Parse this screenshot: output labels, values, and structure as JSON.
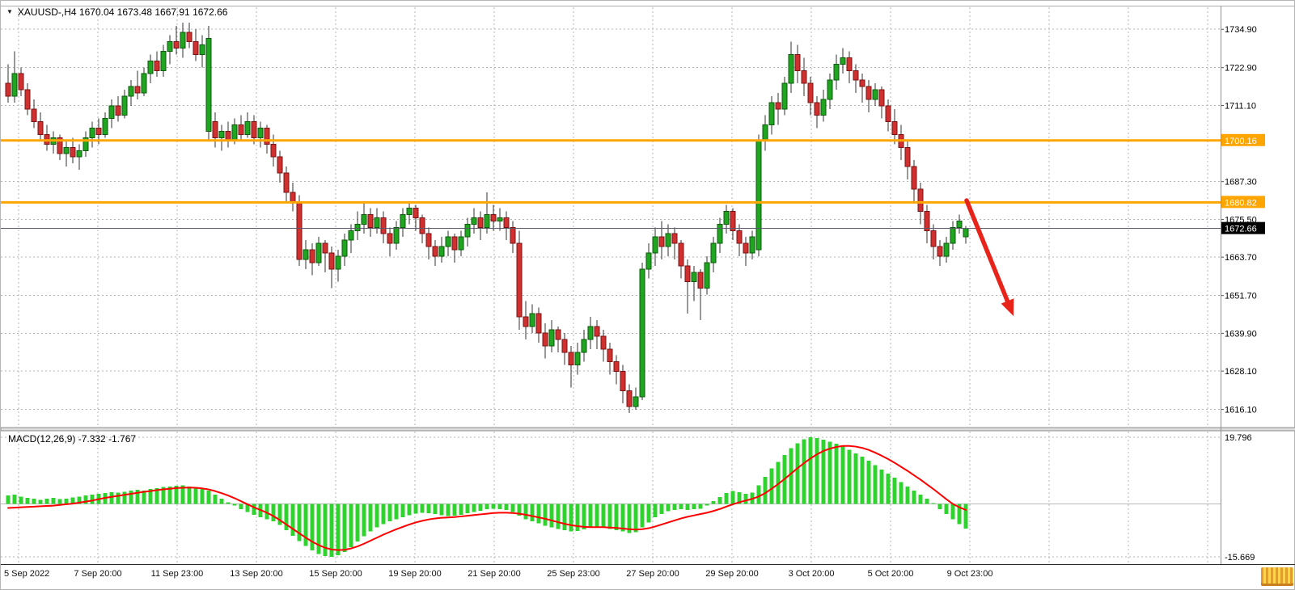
{
  "symbol_info": {
    "dropdown_icon": "▼",
    "symbol": "XAUUSD-",
    "timeframe": "H4",
    "open": "1670.04",
    "high": "1673.48",
    "low": "1667.91",
    "close": "1672.66",
    "label": "XAUUSD-,H4 1670.04 1673.48 1667.91 1672.66"
  },
  "colors": {
    "background": "#ffffff",
    "grid": "#b5b5b5",
    "candle_up": "#1fa51f",
    "candle_up_border": "#0c5c0c",
    "candle_down": "#d03030",
    "candle_down_border": "#7a1414",
    "wick": "#303030",
    "level_orange": "#ffa500",
    "current_price_line": "#5a5a6a",
    "current_price_box": "#000000",
    "macd_histogram": "#2ed32e",
    "macd_signal": "#ff0000",
    "arrow": "#e8231a",
    "axis_text": "#000000",
    "separator": "#8f8f8f"
  },
  "chart_data": [
    {
      "type": "candlestick",
      "symbol": "XAUUSD-",
      "timeframe": "H4",
      "y_axis_ticks": [
        "1734.90",
        "1722.90",
        "1711.10",
        "1687.30",
        "1675.50",
        "1663.70",
        "1651.70",
        "1639.90",
        "1628.10",
        "1616.10"
      ],
      "x_axis_labels": [
        "5 Sep 2022",
        "7 Sep 20:00",
        "11 Sep 23:00",
        "13 Sep 20:00",
        "15 Sep 20:00",
        "19 Sep 20:00",
        "21 Sep 20:00",
        "25 Sep 23:00",
        "27 Sep 20:00",
        "29 Sep 20:00",
        "3 Oct 20:00",
        "5 Oct 20:00",
        "9 Oct 23:00"
      ],
      "levels": [
        {
          "value": 1700.16,
          "label": "1700.16"
        },
        {
          "value": 1680.82,
          "label": "1680.82"
        }
      ],
      "current_price": {
        "value": 1672.66,
        "label": "1672.66"
      },
      "candles": [
        [
          1718,
          1724,
          1712,
          1714
        ],
        [
          1714,
          1728,
          1712,
          1721
        ],
        [
          1721,
          1723,
          1714,
          1716
        ],
        [
          1716,
          1718,
          1708,
          1710
        ],
        [
          1710,
          1713,
          1704,
          1706
        ],
        [
          1706,
          1709,
          1700,
          1702
        ],
        [
          1702,
          1705,
          1697,
          1699
        ],
        [
          1699,
          1703,
          1696,
          1701
        ],
        [
          1701,
          1702,
          1694,
          1696
        ],
        [
          1696,
          1700,
          1692,
          1698
        ],
        [
          1698,
          1701,
          1693,
          1695
        ],
        [
          1695,
          1699,
          1691,
          1697
        ],
        [
          1697,
          1703,
          1695,
          1701
        ],
        [
          1701,
          1706,
          1698,
          1704
        ],
        [
          1704,
          1707,
          1699,
          1702
        ],
        [
          1702,
          1709,
          1701,
          1707
        ],
        [
          1707,
          1713,
          1704,
          1711
        ],
        [
          1711,
          1714,
          1706,
          1708
        ],
        [
          1708,
          1716,
          1707,
          1714
        ],
        [
          1714,
          1719,
          1711,
          1717
        ],
        [
          1717,
          1722,
          1713,
          1715
        ],
        [
          1715,
          1723,
          1714,
          1721
        ],
        [
          1721,
          1727,
          1718,
          1725
        ],
        [
          1725,
          1728,
          1720,
          1722
        ],
        [
          1722,
          1730,
          1720,
          1728
        ],
        [
          1728,
          1733,
          1724,
          1731
        ],
        [
          1731,
          1736,
          1727,
          1729
        ],
        [
          1729,
          1737,
          1726,
          1734
        ],
        [
          1734,
          1737,
          1729,
          1731
        ],
        [
          1731,
          1735,
          1725,
          1727
        ],
        [
          1727,
          1733,
          1723,
          1730
        ],
        [
          1703,
          1736,
          1700,
          1732
        ],
        [
          1706,
          1709,
          1698,
          1701
        ],
        [
          1701,
          1705,
          1697,
          1703
        ],
        [
          1703,
          1706,
          1698,
          1700
        ],
        [
          1700,
          1707,
          1699,
          1705
        ],
        [
          1705,
          1708,
          1700,
          1702
        ],
        [
          1702,
          1709,
          1701,
          1706
        ],
        [
          1706,
          1708,
          1699,
          1701
        ],
        [
          1701,
          1706,
          1698,
          1704
        ],
        [
          1704,
          1705,
          1696,
          1699
        ],
        [
          1699,
          1702,
          1692,
          1695
        ],
        [
          1695,
          1697,
          1687,
          1690
        ],
        [
          1690,
          1692,
          1681,
          1684
        ],
        [
          1684,
          1687,
          1678,
          1681
        ],
        [
          1681,
          1683,
          1661,
          1663
        ],
        [
          1663,
          1669,
          1660,
          1666
        ],
        [
          1666,
          1668,
          1658,
          1662
        ],
        [
          1662,
          1670,
          1661,
          1668
        ],
        [
          1668,
          1669,
          1659,
          1665
        ],
        [
          1665,
          1667,
          1654,
          1660
        ],
        [
          1660,
          1666,
          1656,
          1664
        ],
        [
          1664,
          1671,
          1661,
          1669
        ],
        [
          1669,
          1674,
          1665,
          1672
        ],
        [
          1672,
          1678,
          1669,
          1674
        ],
        [
          1674,
          1681,
          1671,
          1677
        ],
        [
          1677,
          1679,
          1670,
          1673
        ],
        [
          1673,
          1679,
          1671,
          1676
        ],
        [
          1676,
          1678,
          1668,
          1671
        ],
        [
          1671,
          1673,
          1664,
          1668
        ],
        [
          1668,
          1675,
          1666,
          1673
        ],
        [
          1673,
          1679,
          1670,
          1677
        ],
        [
          1677,
          1681,
          1674,
          1679
        ],
        [
          1679,
          1680,
          1672,
          1676
        ],
        [
          1676,
          1677,
          1668,
          1671
        ],
        [
          1671,
          1673,
          1663,
          1667
        ],
        [
          1667,
          1669,
          1661,
          1664
        ],
        [
          1664,
          1670,
          1662,
          1667
        ],
        [
          1667,
          1672,
          1664,
          1670
        ],
        [
          1670,
          1671,
          1662,
          1666
        ],
        [
          1666,
          1672,
          1664,
          1670
        ],
        [
          1670,
          1676,
          1667,
          1674
        ],
        [
          1674,
          1679,
          1671,
          1676
        ],
        [
          1676,
          1678,
          1669,
          1673
        ],
        [
          1673,
          1684,
          1671,
          1677
        ],
        [
          1677,
          1680,
          1672,
          1675
        ],
        [
          1675,
          1679,
          1672,
          1676
        ],
        [
          1676,
          1678,
          1669,
          1673
        ],
        [
          1673,
          1675,
          1665,
          1668
        ],
        [
          1668,
          1672,
          1641,
          1645
        ],
        [
          1645,
          1650,
          1638,
          1642
        ],
        [
          1642,
          1649,
          1640,
          1646
        ],
        [
          1646,
          1648,
          1637,
          1640
        ],
        [
          1640,
          1643,
          1632,
          1636
        ],
        [
          1636,
          1644,
          1634,
          1641
        ],
        [
          1641,
          1642,
          1634,
          1638
        ],
        [
          1638,
          1640,
          1630,
          1634
        ],
        [
          1634,
          1636,
          1623,
          1630
        ],
        [
          1630,
          1637,
          1627,
          1634
        ],
        [
          1634,
          1641,
          1631,
          1638
        ],
        [
          1638,
          1645,
          1635,
          1642
        ],
        [
          1642,
          1644,
          1635,
          1639
        ],
        [
          1639,
          1641,
          1631,
          1635
        ],
        [
          1635,
          1637,
          1627,
          1631
        ],
        [
          1631,
          1633,
          1624,
          1628
        ],
        [
          1628,
          1630,
          1618,
          1622
        ],
        [
          1622,
          1624,
          1615,
          1617
        ],
        [
          1617,
          1623,
          1616,
          1620
        ],
        [
          1620,
          1662,
          1619,
          1660
        ],
        [
          1660,
          1668,
          1657,
          1665
        ],
        [
          1665,
          1673,
          1661,
          1670
        ],
        [
          1670,
          1675,
          1663,
          1667
        ],
        [
          1667,
          1674,
          1664,
          1671
        ],
        [
          1671,
          1673,
          1663,
          1668
        ],
        [
          1668,
          1669,
          1657,
          1661
        ],
        [
          1661,
          1663,
          1646,
          1656
        ],
        [
          1656,
          1661,
          1650,
          1659
        ],
        [
          1659,
          1660,
          1644,
          1654
        ],
        [
          1654,
          1664,
          1652,
          1662
        ],
        [
          1662,
          1670,
          1659,
          1668
        ],
        [
          1668,
          1676,
          1665,
          1674
        ],
        [
          1674,
          1680,
          1671,
          1678
        ],
        [
          1678,
          1679,
          1669,
          1672
        ],
        [
          1672,
          1674,
          1664,
          1668
        ],
        [
          1668,
          1670,
          1661,
          1665
        ],
        [
          1665,
          1672,
          1663,
          1670
        ],
        [
          1666,
          1702,
          1664,
          1700
        ],
        [
          1700,
          1708,
          1697,
          1705
        ],
        [
          1705,
          1714,
          1702,
          1712
        ],
        [
          1712,
          1715,
          1705,
          1710
        ],
        [
          1710,
          1720,
          1708,
          1718
        ],
        [
          1718,
          1731,
          1715,
          1727
        ],
        [
          1727,
          1730,
          1718,
          1722
        ],
        [
          1722,
          1726,
          1714,
          1718
        ],
        [
          1718,
          1720,
          1708,
          1712
        ],
        [
          1712,
          1714,
          1704,
          1708
        ],
        [
          1708,
          1716,
          1706,
          1713
        ],
        [
          1713,
          1721,
          1710,
          1719
        ],
        [
          1719,
          1727,
          1716,
          1724
        ],
        [
          1724,
          1729,
          1721,
          1726
        ],
        [
          1726,
          1728,
          1718,
          1722
        ],
        [
          1722,
          1724,
          1715,
          1719
        ],
        [
          1719,
          1721,
          1712,
          1717
        ],
        [
          1717,
          1719,
          1709,
          1713
        ],
        [
          1713,
          1718,
          1711,
          1716
        ],
        [
          1716,
          1717,
          1707,
          1711
        ],
        [
          1711,
          1713,
          1703,
          1706
        ],
        [
          1706,
          1710,
          1699,
          1702
        ],
        [
          1702,
          1705,
          1694,
          1698
        ],
        [
          1698,
          1700,
          1688,
          1692
        ],
        [
          1692,
          1694,
          1681,
          1685
        ],
        [
          1685,
          1687,
          1674,
          1678
        ],
        [
          1678,
          1680,
          1668,
          1672
        ],
        [
          1672,
          1674,
          1663,
          1667
        ],
        [
          1667,
          1669,
          1661,
          1664
        ],
        [
          1664,
          1670,
          1662,
          1668
        ],
        [
          1668,
          1675,
          1666,
          1673
        ],
        [
          1673,
          1677,
          1671,
          1675
        ],
        [
          1670.04,
          1673.48,
          1667.91,
          1672.66
        ]
      ],
      "annotations": [
        {
          "type": "arrow",
          "from": [
            1194,
            247
          ],
          "to": [
            1252,
            390
          ]
        }
      ]
    },
    {
      "type": "macd",
      "name": "MACD",
      "params": "12,26,9",
      "macd_value": "-7.332",
      "signal_value": "-1.767",
      "display_label": "MACD(12,26,9) -7.332 -1.767",
      "y_axis_ticks": [
        "19.796",
        "-15.669"
      ],
      "histogram": [
        2.5,
        2.8,
        2.2,
        1.8,
        1.5,
        1.2,
        1.5,
        1.8,
        1.4,
        1.6,
        1.9,
        2.2,
        2.5,
        2.8,
        3.0,
        3.2,
        3.5,
        3.3,
        3.6,
        3.9,
        4.2,
        4.0,
        4.4,
        4.7,
        5.0,
        5.2,
        5.4,
        5.5,
        5.2,
        4.8,
        4.5,
        4.0,
        2.8,
        1.5,
        0.5,
        -0.5,
        -1.5,
        -2.4,
        -3.2,
        -3.9,
        -4.5,
        -5.2,
        -6.2,
        -7.8,
        -9.5,
        -11.0,
        -12.5,
        -13.8,
        -14.8,
        -15.4,
        -15.669,
        -15.2,
        -14.2,
        -12.8,
        -11.2,
        -9.6,
        -8.2,
        -7.0,
        -6.0,
        -5.2,
        -4.6,
        -4.0,
        -3.4,
        -2.9,
        -2.6,
        -2.7,
        -3.0,
        -3.4,
        -3.6,
        -3.5,
        -3.2,
        -2.8,
        -2.4,
        -2.0,
        -1.6,
        -1.4,
        -1.5,
        -1.8,
        -2.4,
        -3.5,
        -4.5,
        -5.2,
        -5.8,
        -6.5,
        -7.0,
        -7.4,
        -7.8,
        -8.2,
        -8.0,
        -7.5,
        -7.0,
        -6.8,
        -7.0,
        -7.4,
        -7.8,
        -8.2,
        -8.6,
        -8.4,
        -7.0,
        -5.5,
        -4.0,
        -3.0,
        -2.2,
        -1.8,
        -1.6,
        -1.8,
        -1.5,
        -1.4,
        -0.5,
        0.8,
        2.0,
        3.2,
        3.8,
        3.5,
        3.0,
        3.4,
        5.5,
        8.0,
        10.5,
        12.5,
        14.5,
        16.5,
        18.0,
        19.2,
        19.796,
        19.5,
        19.0,
        18.4,
        17.8,
        17.0,
        16.0,
        15.0,
        14.0,
        12.8,
        11.5,
        10.2,
        9.0,
        7.8,
        6.5,
        5.2,
        4.0,
        2.8,
        1.5,
        0.2,
        -1.5,
        -3.0,
        -4.5,
        -6.0,
        -7.332
      ],
      "signal": [
        -1.2,
        -1.1,
        -1.0,
        -0.9,
        -0.8,
        -0.7,
        -0.6,
        -0.5,
        -0.3,
        -0.1,
        0.1,
        0.4,
        0.7,
        1.0,
        1.4,
        1.8,
        2.1,
        2.4,
        2.7,
        3.0,
        3.3,
        3.6,
        3.8,
        4.1,
        4.3,
        4.5,
        4.7,
        4.8,
        4.85,
        4.8,
        4.6,
        4.3,
        3.8,
        3.2,
        2.5,
        1.7,
        0.8,
        -0.1,
        -1.0,
        -1.8,
        -2.6,
        -3.6,
        -4.8,
        -6.1,
        -7.4,
        -8.7,
        -10.0,
        -11.2,
        -12.2,
        -13.0,
        -13.5,
        -13.7,
        -13.6,
        -13.2,
        -12.6,
        -11.8,
        -10.9,
        -10.0,
        -9.1,
        -8.3,
        -7.5,
        -6.8,
        -6.1,
        -5.5,
        -5.0,
        -4.6,
        -4.3,
        -4.1,
        -4.0,
        -3.9,
        -3.7,
        -3.5,
        -3.3,
        -3.1,
        -2.9,
        -2.7,
        -2.6,
        -2.6,
        -2.7,
        -2.9,
        -3.2,
        -3.6,
        -4.0,
        -4.4,
        -4.9,
        -5.4,
        -5.9,
        -6.3,
        -6.6,
        -6.8,
        -6.9,
        -6.9,
        -6.9,
        -7.0,
        -7.1,
        -7.3,
        -7.5,
        -7.6,
        -7.5,
        -7.2,
        -6.7,
        -6.1,
        -5.5,
        -4.9,
        -4.3,
        -3.8,
        -3.4,
        -3.0,
        -2.6,
        -2.1,
        -1.5,
        -0.8,
        -0.1,
        0.5,
        1.0,
        1.5,
        2.2,
        3.2,
        4.5,
        5.9,
        7.4,
        9.0,
        10.6,
        12.1,
        13.5,
        14.7,
        15.7,
        16.4,
        16.9,
        17.2,
        17.2,
        17.0,
        16.6,
        16.0,
        15.2,
        14.3,
        13.3,
        12.2,
        11.0,
        9.8,
        8.5,
        7.2,
        5.8,
        4.4,
        2.9,
        1.4,
        0.0,
        -1.0,
        -1.767
      ]
    }
  ]
}
